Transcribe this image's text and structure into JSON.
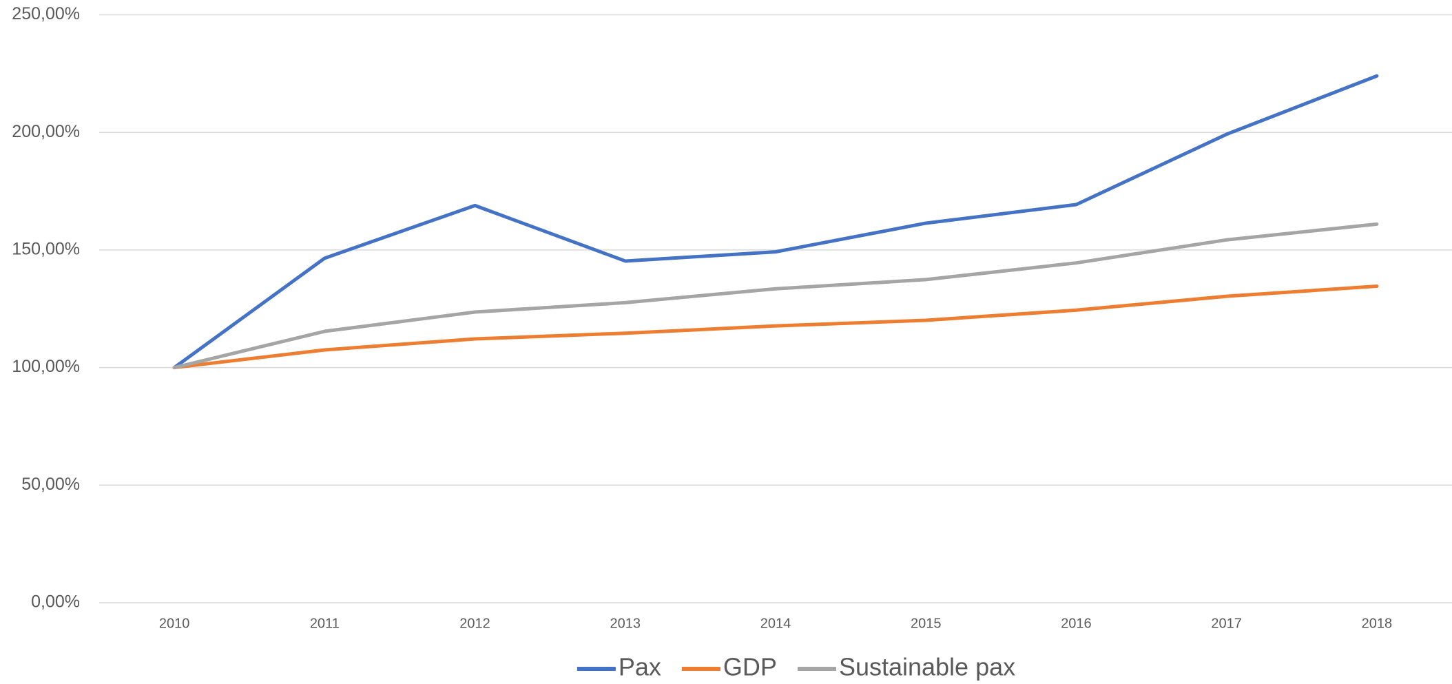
{
  "chart_data": {
    "type": "line",
    "categories": [
      "2010",
      "2011",
      "2012",
      "2013",
      "2014",
      "2015",
      "2016",
      "2017",
      "2018"
    ],
    "series": [
      {
        "name": "Pax",
        "color": "#4472c4",
        "values": [
          100,
          146.5,
          168.9,
          145.3,
          149.2,
          161.4,
          169.3,
          199.2,
          224.0
        ]
      },
      {
        "name": "GDP",
        "color": "#ed7d31",
        "values": [
          100,
          107.5,
          112.2,
          114.6,
          117.7,
          120.1,
          124.4,
          130.3,
          134.6
        ]
      },
      {
        "name": "Sustainable pax",
        "color": "#a5a5a5",
        "values": [
          100,
          115.4,
          123.6,
          127.6,
          133.5,
          137.4,
          144.5,
          154.3,
          161.0
        ]
      }
    ],
    "ylim": [
      0,
      250
    ],
    "yticks": [
      {
        "value": 0,
        "label": "0,00%"
      },
      {
        "value": 50,
        "label": "50,00%"
      },
      {
        "value": 100,
        "label": "100,00%"
      },
      {
        "value": 150,
        "label": "150,00%"
      },
      {
        "value": 200,
        "label": "200,00%"
      },
      {
        "value": 250,
        "label": "250,00%"
      }
    ],
    "grid": true,
    "legend": "bottom"
  }
}
